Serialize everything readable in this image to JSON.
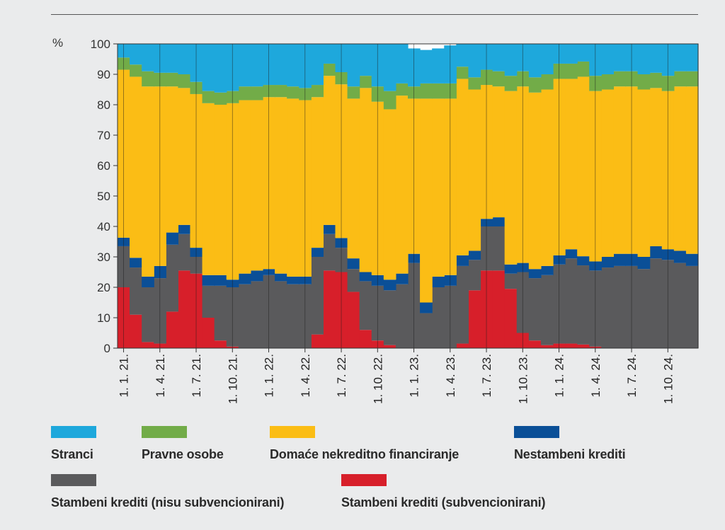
{
  "chart_data": {
    "type": "area",
    "stacked": true,
    "ylabel": "%",
    "ylim": [
      0,
      100
    ],
    "yticks": [
      0,
      10,
      20,
      30,
      40,
      50,
      60,
      70,
      80,
      90,
      100
    ],
    "x_tick_labels": [
      "1. 1. 21.",
      "1. 4. 21.",
      "1. 7. 21.",
      "1. 10. 21.",
      "1. 1. 22.",
      "1. 4. 22.",
      "1. 7. 22.",
      "1. 10. 22.",
      "1. 1. 23.",
      "1. 4. 23.",
      "1. 7. 23.",
      "1. 10. 23.",
      "1. 1. 24.",
      "1. 4. 24.",
      "1. 7. 24.",
      "1. 10. 24."
    ],
    "periods": 48,
    "colors": {
      "Stranci": "#1ea8dc",
      "Pravne osobe": "#72ac48",
      "Domaće nekreditno financiranje": "#fbbd15",
      "Nestambeni krediti": "#0a4f97",
      "Stambeni krediti (nisu subvencionirani)": "#5a5a5c",
      "Stambeni krediti (subvencionirani)": "#d71f2a"
    },
    "series": [
      {
        "name": "Stambeni krediti (subvencionirani)",
        "values": [
          20,
          11,
          2,
          1.5,
          12,
          25.5,
          24.5,
          10,
          2.5,
          0.5,
          0,
          0,
          0,
          0,
          0,
          0,
          4.5,
          25.5,
          25,
          18.5,
          6,
          2.5,
          1,
          0,
          0,
          0,
          0,
          0,
          1.5,
          19,
          25.5,
          25.5,
          19.5,
          5,
          2.5,
          1,
          1.5,
          1.5,
          1.2,
          0.5,
          0,
          0,
          0,
          0,
          0,
          0,
          0,
          0
        ]
      },
      {
        "name": "Stambeni krediti (nisu subvencionirani)",
        "values": [
          13.5,
          15.5,
          18,
          21.5,
          22,
          12,
          5.5,
          10.5,
          18,
          19.5,
          21,
          22,
          24,
          22,
          21,
          21,
          25.5,
          12,
          8,
          7.5,
          16,
          18,
          18,
          21,
          28,
          11.5,
          20,
          20.5,
          25.5,
          10,
          14.5,
          14.5,
          5,
          20,
          20.5,
          23,
          26,
          28,
          26,
          25,
          26.5,
          27,
          27,
          26,
          29.5,
          29,
          28,
          27
        ]
      },
      {
        "name": "Nestambeni krediti",
        "values": [
          2.8,
          3.2,
          3.5,
          4,
          4,
          3,
          3,
          3.5,
          3.5,
          2.5,
          3.5,
          3.5,
          2,
          2.5,
          2.5,
          2.5,
          3,
          3,
          3.2,
          3.5,
          3,
          3.5,
          3.5,
          3.5,
          3,
          3.5,
          3.5,
          3.5,
          3.5,
          3,
          2.5,
          3,
          3,
          3,
          3,
          3,
          3,
          3,
          3,
          3,
          3.5,
          4,
          4,
          4,
          4,
          3.5,
          4,
          4
        ]
      },
      {
        "name": "Domaće nekreditno financiranje",
        "values": [
          55.2,
          59.5,
          62.5,
          59,
          48,
          45,
          50.5,
          56.5,
          56,
          58,
          57,
          56,
          56.5,
          58,
          58.5,
          58,
          49.5,
          49,
          50.5,
          52.5,
          60.5,
          57,
          56,
          58.5,
          51,
          67,
          58.5,
          58,
          58,
          53,
          44,
          43,
          57,
          58,
          58,
          58,
          58,
          56,
          59,
          56,
          55,
          55,
          55,
          55,
          52,
          52,
          54,
          55
        ]
      },
      {
        "name": "Pravne osobe",
        "values": [
          4,
          4,
          5,
          4.5,
          4.5,
          4.5,
          4,
          4,
          4,
          4,
          4.5,
          4.5,
          4,
          4,
          4,
          4,
          4,
          4,
          4,
          4,
          4,
          5,
          6,
          4,
          4,
          5,
          5,
          5,
          4,
          4,
          5,
          5,
          5,
          5,
          5,
          5,
          5,
          5,
          5,
          5,
          5,
          5,
          5,
          5,
          5,
          5,
          5,
          5
        ]
      },
      {
        "name": "Stranci",
        "values": [
          4.5,
          6.8,
          9,
          9.5,
          9.5,
          10.5,
          12.5,
          15.5,
          16,
          15.5,
          14,
          14,
          13.5,
          13.5,
          14,
          14.5,
          13.5,
          11,
          12.5,
          14,
          10.5,
          14,
          15.5,
          13,
          12.5,
          11,
          11.5,
          12.5,
          11.5,
          11,
          8.5,
          9,
          10.5,
          9,
          11,
          10,
          9,
          9,
          9,
          10.5,
          10,
          9,
          9,
          10,
          9.5,
          10.5,
          9,
          9
        ]
      }
    ]
  },
  "legend": {
    "stranci": "Stranci",
    "pravne_osobe": "Pravne osobe",
    "domace": "Domaće nekreditno financiranje",
    "nestambeni": "Nestambeni krediti",
    "stambeni_nesub": "Stambeni krediti (nisu subvencionirani)",
    "stambeni_sub": "Stambeni krediti (subvencionirani)"
  }
}
